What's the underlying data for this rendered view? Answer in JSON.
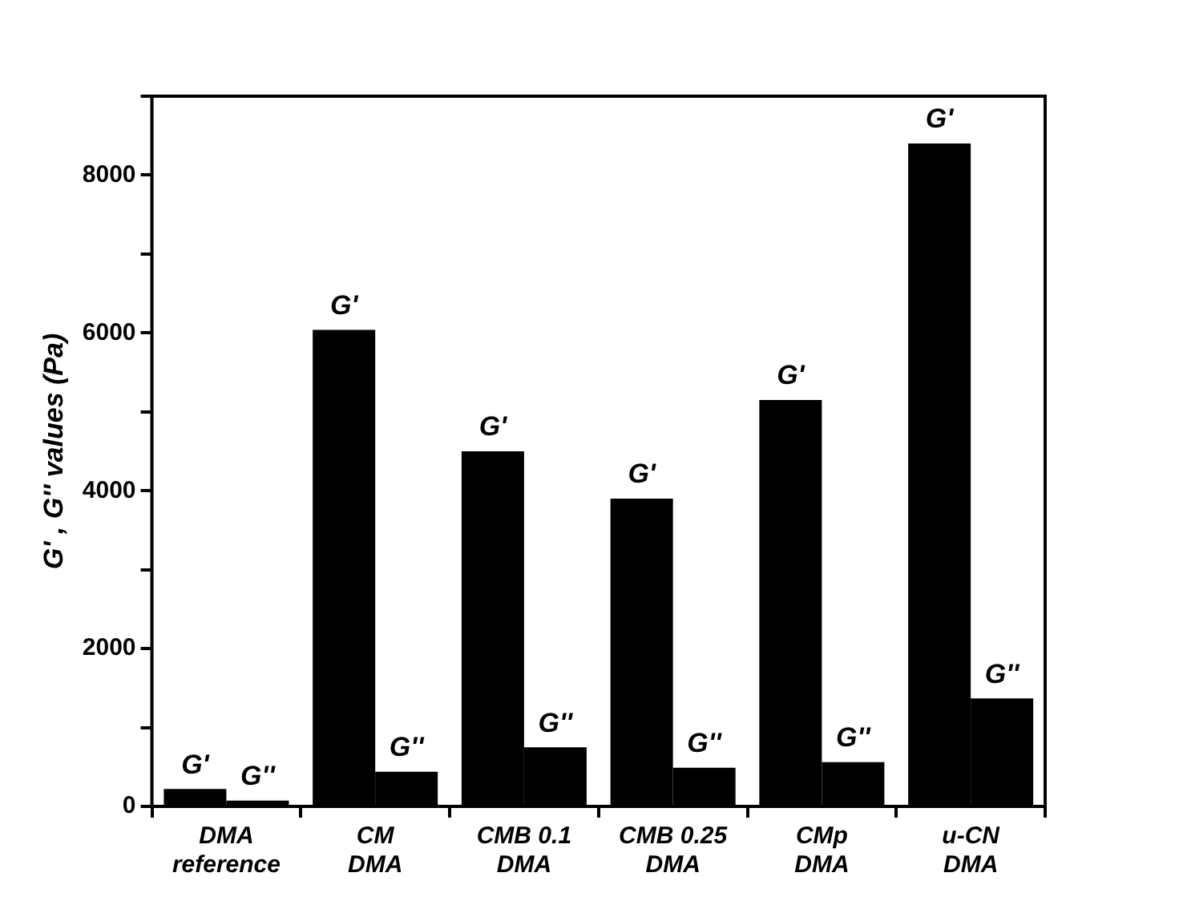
{
  "chart_data": {
    "type": "bar",
    "ylabel": "G' , G'' values (Pa)",
    "categories": [
      "DMA\nreference",
      "CM\nDMA",
      "CMB 0.1\nDMA",
      "CMB 0.25\nDMA",
      "CMp\nDMA",
      "u-CN\nDMA"
    ],
    "series": [
      {
        "name": "G'",
        "color": "#000000",
        "values": [
          220,
          6040,
          4500,
          3900,
          5150,
          8400
        ]
      },
      {
        "name": "G''",
        "color": "#000000",
        "values": [
          73,
          440,
          750,
          490,
          560,
          1370
        ]
      }
    ],
    "ylim": [
      0,
      9000
    ],
    "yticks": [
      0,
      {
        "value": 1000,
        "label": null
      },
      2000,
      {
        "value": 3000,
        "label": null
      },
      4000,
      {
        "value": 5000,
        "label": null
      },
      6000,
      {
        "value": 7000,
        "label": null
      },
      8000,
      {
        "value": 9000,
        "label": null
      }
    ],
    "grid": false,
    "legend": false
  }
}
